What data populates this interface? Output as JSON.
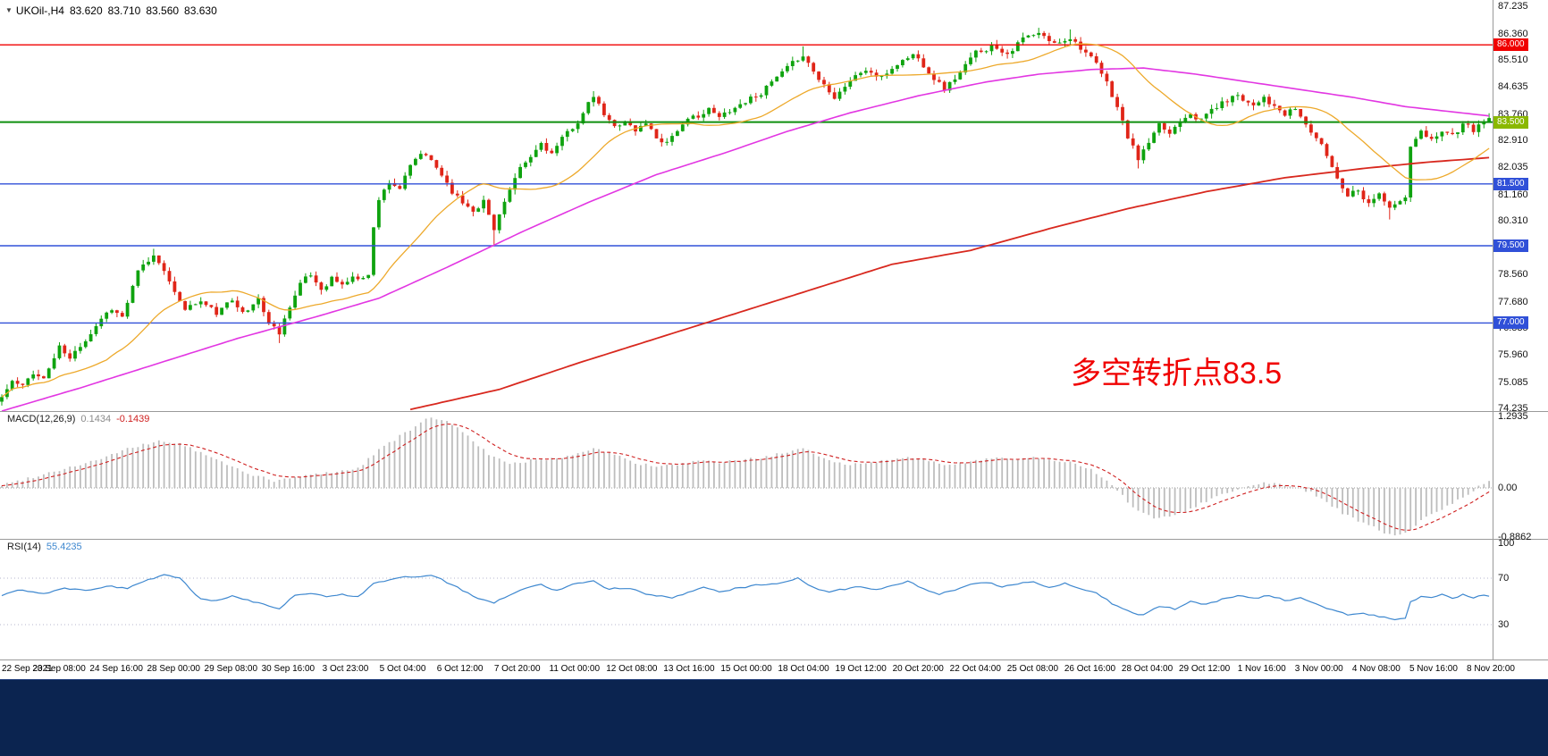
{
  "header": {
    "symbol_period": "UKOil-,H4",
    "open": "83.620",
    "high": "83.710",
    "low": "83.560",
    "close": "83.630"
  },
  "annotation": {
    "text": "多空转折点83.5",
    "color": "#f00000"
  },
  "taskbar_color": "#0b2450",
  "chart_data": {
    "type": "candlestick",
    "symbol": "UKOil-",
    "timeframe": "H4",
    "num_candles": 285,
    "up_color": "#0fa30f",
    "down_color": "#e02518",
    "y_axis": {
      "range": [
        74.235,
        87.235
      ],
      "ticks": [
        "87.235",
        "86.360",
        "85.510",
        "84.635",
        "83.760",
        "82.910",
        "82.035",
        "81.160",
        "80.310",
        "78.560",
        "77.680",
        "76.835",
        "75.960",
        "75.085",
        "74.235"
      ]
    },
    "x_axis": {
      "labels": [
        "22 Sep 2021",
        "23 Sep 08:00",
        "24 Sep 16:00",
        "28 Sep 00:00",
        "29 Sep 08:00",
        "30 Sep 16:00",
        "3 Oct 23:00",
        "5 Oct 04:00",
        "6 Oct 12:00",
        "7 Oct 20:00",
        "11 Oct 00:00",
        "12 Oct 08:00",
        "13 Oct 16:00",
        "15 Oct 00:00",
        "18 Oct 04:00",
        "19 Oct 12:00",
        "20 Oct 20:00",
        "22 Oct 04:00",
        "25 Oct 08:00",
        "26 Oct 16:00",
        "28 Oct 04:00",
        "29 Oct 12:00",
        "1 Nov 16:00",
        "3 Nov 00:00",
        "4 Nov 08:00",
        "5 Nov 16:00",
        "8 Nov 20:00"
      ]
    },
    "horizontal_lines": [
      {
        "price": 86.0,
        "label": "86.000",
        "color": "#f00000",
        "width": 1.4
      },
      {
        "price": 83.5,
        "label": "83.500",
        "color": "#0f8f0f",
        "badge_color": "#8ab800",
        "width": 2
      },
      {
        "price": 81.5,
        "label": "81.500",
        "color": "#3050d8",
        "width": 1.4
      },
      {
        "price": 79.5,
        "label": "79.500",
        "color": "#3050d8",
        "width": 1.4
      },
      {
        "price": 77.0,
        "label": "77.000",
        "color": "#3050d8",
        "width": 1.4
      }
    ],
    "close_anchors": [
      [
        0,
        74.6
      ],
      [
        2,
        75.1
      ],
      [
        4,
        74.9
      ],
      [
        6,
        75.4
      ],
      [
        8,
        75.2
      ],
      [
        11,
        76.2
      ],
      [
        13,
        75.8
      ],
      [
        16,
        76.5
      ],
      [
        19,
        77.2
      ],
      [
        21,
        77.5
      ],
      [
        23,
        77.2
      ],
      [
        26,
        78.6
      ],
      [
        29,
        79.15
      ],
      [
        31,
        78.8
      ],
      [
        33,
        77.9
      ],
      [
        35,
        77.5
      ],
      [
        38,
        77.7
      ],
      [
        41,
        77.3
      ],
      [
        44,
        77.7
      ],
      [
        47,
        77.4
      ],
      [
        49,
        77.8
      ],
      [
        51,
        77.0
      ],
      [
        53,
        76.7
      ],
      [
        55,
        77.6
      ],
      [
        57,
        78.3
      ],
      [
        59,
        78.5
      ],
      [
        61,
        78.1
      ],
      [
        63,
        78.5
      ],
      [
        65,
        78.2
      ],
      [
        67,
        78.5
      ],
      [
        69,
        78.4
      ],
      [
        70,
        78.6
      ],
      [
        71,
        80.2
      ],
      [
        72,
        81.0
      ],
      [
        74,
        81.6
      ],
      [
        76,
        81.4
      ],
      [
        78,
        82.0
      ],
      [
        80,
        82.45
      ],
      [
        82,
        82.2
      ],
      [
        84,
        81.8
      ],
      [
        86,
        81.3
      ],
      [
        88,
        80.9
      ],
      [
        90,
        80.7
      ],
      [
        92,
        81.0
      ],
      [
        94,
        80.0
      ],
      [
        95,
        80.6
      ],
      [
        97,
        81.3
      ],
      [
        99,
        81.9
      ],
      [
        101,
        82.3
      ],
      [
        103,
        82.8
      ],
      [
        105,
        82.5
      ],
      [
        107,
        82.9
      ],
      [
        109,
        83.3
      ],
      [
        111,
        83.8
      ],
      [
        113,
        84.3
      ],
      [
        115,
        83.7
      ],
      [
        117,
        83.3
      ],
      [
        119,
        83.6
      ],
      [
        121,
        83.2
      ],
      [
        123,
        83.5
      ],
      [
        125,
        83.0
      ],
      [
        127,
        82.9
      ],
      [
        129,
        83.3
      ],
      [
        131,
        83.5
      ],
      [
        133,
        83.7
      ],
      [
        135,
        83.9
      ],
      [
        137,
        83.6
      ],
      [
        139,
        83.9
      ],
      [
        142,
        84.2
      ],
      [
        145,
        84.5
      ],
      [
        148,
        84.9
      ],
      [
        151,
        85.3
      ],
      [
        153,
        85.7
      ],
      [
        156,
        84.9
      ],
      [
        159,
        84.4
      ],
      [
        162,
        84.9
      ],
      [
        165,
        85.2
      ],
      [
        168,
        84.9
      ],
      [
        171,
        85.4
      ],
      [
        174,
        85.7
      ],
      [
        177,
        85.2
      ],
      [
        180,
        84.6
      ],
      [
        183,
        85.1
      ],
      [
        186,
        85.7
      ],
      [
        189,
        86.0
      ],
      [
        192,
        85.8
      ],
      [
        195,
        86.2
      ],
      [
        198,
        86.3
      ],
      [
        201,
        86.0
      ],
      [
        204,
        86.3
      ],
      [
        207,
        85.8
      ],
      [
        209,
        85.3
      ],
      [
        211,
        84.7
      ],
      [
        213,
        84.0
      ],
      [
        215,
        83.0
      ],
      [
        217,
        82.3
      ],
      [
        219,
        82.8
      ],
      [
        221,
        83.3
      ],
      [
        223,
        83.1
      ],
      [
        225,
        83.6
      ],
      [
        227,
        83.9
      ],
      [
        229,
        83.6
      ],
      [
        231,
        83.9
      ],
      [
        233,
        84.1
      ],
      [
        236,
        84.4
      ],
      [
        239,
        84.1
      ],
      [
        241,
        84.4
      ],
      [
        243,
        84.0
      ],
      [
        245,
        83.7
      ],
      [
        247,
        83.9
      ],
      [
        249,
        83.4
      ],
      [
        251,
        83.0
      ],
      [
        253,
        82.4
      ],
      [
        255,
        81.7
      ],
      [
        257,
        81.2
      ],
      [
        259,
        81.4
      ],
      [
        261,
        80.9
      ],
      [
        263,
        81.3
      ],
      [
        265,
        80.7
      ],
      [
        267,
        80.9
      ],
      [
        268,
        81.0
      ],
      [
        269,
        82.7
      ],
      [
        271,
        83.1
      ],
      [
        273,
        82.9
      ],
      [
        275,
        83.3
      ],
      [
        277,
        83.1
      ],
      [
        279,
        83.4
      ],
      [
        281,
        83.2
      ],
      [
        283,
        83.5
      ],
      [
        284,
        83.63
      ]
    ],
    "wick_lows": {
      "53": 76.35,
      "94": 79.5,
      "217": 82.0,
      "265": 80.35
    },
    "wick_highs": {
      "29": 79.4,
      "113": 84.5,
      "153": 85.95,
      "198": 86.55,
      "204": 86.5
    },
    "moving_averages": {
      "fast": {
        "color": "#edA92b",
        "period": 21
      },
      "mid": {
        "color": "#e236e2",
        "anchors": [
          [
            0,
            74.15
          ],
          [
            15,
            74.9
          ],
          [
            30,
            75.7
          ],
          [
            45,
            76.5
          ],
          [
            60,
            77.2
          ],
          [
            72,
            77.8
          ],
          [
            85,
            78.8
          ],
          [
            100,
            80.0
          ],
          [
            112,
            80.9
          ],
          [
            125,
            81.8
          ],
          [
            138,
            82.5
          ],
          [
            150,
            83.2
          ],
          [
            162,
            83.8
          ],
          [
            175,
            84.35
          ],
          [
            188,
            84.8
          ],
          [
            198,
            85.05
          ],
          [
            208,
            85.2
          ],
          [
            218,
            85.25
          ],
          [
            228,
            85.05
          ],
          [
            238,
            84.8
          ],
          [
            248,
            84.55
          ],
          [
            258,
            84.3
          ],
          [
            268,
            84.0
          ],
          [
            276,
            83.85
          ],
          [
            284,
            83.7
          ]
        ]
      },
      "slow": {
        "color": "#d8281e",
        "anchors": [
          [
            78,
            74.2
          ],
          [
            95,
            74.85
          ],
          [
            110,
            75.7
          ],
          [
            125,
            76.5
          ],
          [
            140,
            77.3
          ],
          [
            155,
            78.1
          ],
          [
            170,
            78.9
          ],
          [
            185,
            79.35
          ],
          [
            200,
            80.05
          ],
          [
            215,
            80.7
          ],
          [
            230,
            81.25
          ],
          [
            245,
            81.7
          ],
          [
            260,
            82.0
          ],
          [
            272,
            82.2
          ],
          [
            284,
            82.35
          ]
        ]
      }
    },
    "macd": {
      "label": "MACD(12,26,9)",
      "value_main": "0.1434",
      "value_signal": "-0.1439",
      "axis_labels": [
        "1.2935",
        "0.00",
        "-0.8862"
      ],
      "histogram_color": "#bdbdbd",
      "signal_color": "#cf1f1f",
      "anchors": [
        [
          0,
          0.05
        ],
        [
          6,
          0.2
        ],
        [
          12,
          0.35
        ],
        [
          18,
          0.5
        ],
        [
          24,
          0.7
        ],
        [
          30,
          0.85
        ],
        [
          34,
          0.8
        ],
        [
          40,
          0.55
        ],
        [
          46,
          0.3
        ],
        [
          52,
          0.12
        ],
        [
          58,
          0.22
        ],
        [
          64,
          0.3
        ],
        [
          68,
          0.35
        ],
        [
          72,
          0.7
        ],
        [
          78,
          1.05
        ],
        [
          82,
          1.29
        ],
        [
          85,
          1.2
        ],
        [
          89,
          0.95
        ],
        [
          93,
          0.6
        ],
        [
          97,
          0.42
        ],
        [
          101,
          0.5
        ],
        [
          105,
          0.52
        ],
        [
          109,
          0.6
        ],
        [
          113,
          0.72
        ],
        [
          117,
          0.6
        ],
        [
          121,
          0.45
        ],
        [
          125,
          0.38
        ],
        [
          129,
          0.42
        ],
        [
          133,
          0.48
        ],
        [
          137,
          0.46
        ],
        [
          141,
          0.5
        ],
        [
          145,
          0.55
        ],
        [
          149,
          0.62
        ],
        [
          153,
          0.7
        ],
        [
          157,
          0.55
        ],
        [
          161,
          0.42
        ],
        [
          165,
          0.45
        ],
        [
          169,
          0.5
        ],
        [
          173,
          0.58
        ],
        [
          177,
          0.48
        ],
        [
          181,
          0.4
        ],
        [
          185,
          0.48
        ],
        [
          189,
          0.55
        ],
        [
          193,
          0.52
        ],
        [
          197,
          0.55
        ],
        [
          201,
          0.48
        ],
        [
          205,
          0.45
        ],
        [
          208,
          0.32
        ],
        [
          211,
          0.12
        ],
        [
          214,
          -0.15
        ],
        [
          217,
          -0.42
        ],
        [
          220,
          -0.55
        ],
        [
          223,
          -0.5
        ],
        [
          226,
          -0.42
        ],
        [
          229,
          -0.28
        ],
        [
          232,
          -0.15
        ],
        [
          235,
          -0.05
        ],
        [
          238,
          0.02
        ],
        [
          241,
          0.1
        ],
        [
          244,
          0.08
        ],
        [
          247,
          0.02
        ],
        [
          250,
          -0.08
        ],
        [
          253,
          -0.25
        ],
        [
          256,
          -0.45
        ],
        [
          259,
          -0.6
        ],
        [
          262,
          -0.72
        ],
        [
          265,
          -0.85
        ],
        [
          268,
          -0.82
        ],
        [
          271,
          -0.6
        ],
        [
          274,
          -0.42
        ],
        [
          277,
          -0.28
        ],
        [
          280,
          -0.12
        ],
        [
          282,
          0.02
        ],
        [
          284,
          0.1434
        ]
      ]
    },
    "rsi": {
      "label": "RSI(14)",
      "value": "55.4235",
      "axis_labels": [
        "100",
        "70",
        "30"
      ],
      "levels": [
        70,
        30
      ],
      "color": "#3d87cf",
      "anchors": [
        [
          0,
          55
        ],
        [
          4,
          60
        ],
        [
          8,
          57
        ],
        [
          12,
          62
        ],
        [
          16,
          60
        ],
        [
          20,
          64
        ],
        [
          24,
          61
        ],
        [
          28,
          70
        ],
        [
          31,
          73
        ],
        [
          34,
          71
        ],
        [
          36,
          60
        ],
        [
          38,
          52
        ],
        [
          41,
          50
        ],
        [
          44,
          54
        ],
        [
          47,
          51
        ],
        [
          50,
          47
        ],
        [
          53,
          44
        ],
        [
          56,
          55
        ],
        [
          59,
          58
        ],
        [
          62,
          54
        ],
        [
          65,
          57
        ],
        [
          68,
          54
        ],
        [
          71,
          65
        ],
        [
          74,
          69
        ],
        [
          78,
          71
        ],
        [
          82,
          73
        ],
        [
          85,
          66
        ],
        [
          88,
          59
        ],
        [
          91,
          53
        ],
        [
          94,
          48
        ],
        [
          97,
          56
        ],
        [
          100,
          61
        ],
        [
          103,
          64
        ],
        [
          106,
          60
        ],
        [
          109,
          64
        ],
        [
          113,
          69
        ],
        [
          116,
          61
        ],
        [
          119,
          62
        ],
        [
          122,
          58
        ],
        [
          125,
          54
        ],
        [
          128,
          53
        ],
        [
          131,
          58
        ],
        [
          134,
          61
        ],
        [
          137,
          58
        ],
        [
          140,
          61
        ],
        [
          143,
          63
        ],
        [
          146,
          65
        ],
        [
          149,
          67
        ],
        [
          152,
          70
        ],
        [
          155,
          62
        ],
        [
          158,
          57
        ],
        [
          161,
          60
        ],
        [
          164,
          63
        ],
        [
          167,
          60
        ],
        [
          170,
          64
        ],
        [
          173,
          67
        ],
        [
          176,
          60
        ],
        [
          179,
          55
        ],
        [
          182,
          60
        ],
        [
          185,
          65
        ],
        [
          188,
          67
        ],
        [
          191,
          63
        ],
        [
          194,
          66
        ],
        [
          197,
          67
        ],
        [
          200,
          63
        ],
        [
          203,
          66
        ],
        [
          206,
          62
        ],
        [
          209,
          57
        ],
        [
          212,
          48
        ],
        [
          215,
          41
        ],
        [
          218,
          38
        ],
        [
          221,
          46
        ],
        [
          224,
          43
        ],
        [
          227,
          50
        ],
        [
          230,
          48
        ],
        [
          233,
          52
        ],
        [
          236,
          55
        ],
        [
          239,
          52
        ],
        [
          242,
          55
        ],
        [
          245,
          51
        ],
        [
          248,
          53
        ],
        [
          251,
          47
        ],
        [
          254,
          42
        ],
        [
          257,
          38
        ],
        [
          260,
          41
        ],
        [
          263,
          37
        ],
        [
          266,
          34
        ],
        [
          268,
          36
        ],
        [
          269,
          50
        ],
        [
          271,
          54
        ],
        [
          273,
          52
        ],
        [
          275,
          56
        ],
        [
          277,
          53
        ],
        [
          279,
          56
        ],
        [
          281,
          54
        ],
        [
          283,
          56
        ],
        [
          284,
          55.42
        ]
      ]
    }
  }
}
